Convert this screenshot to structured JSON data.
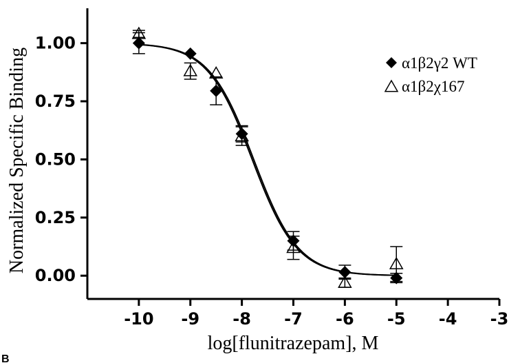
{
  "chart_data": {
    "type": "scatter",
    "xlabel": "log[flunitrazepam], M",
    "ylabel": "Normalized Specific Binding",
    "xlim": [
      -11,
      -3
    ],
    "ylim": [
      -0.1,
      1.15
    ],
    "x_ticks": [
      -10,
      -9,
      -8,
      -7,
      -6,
      -5,
      -4,
      -3
    ],
    "x_tick_labels": [
      "-10",
      "-9",
      "-8",
      "-7",
      "-6",
      "-5",
      "-4",
      "-3"
    ],
    "y_ticks": [
      0.0,
      0.25,
      0.5,
      0.75,
      1.0
    ],
    "y_tick_labels": [
      "0.00",
      "0.25",
      "0.50",
      "0.75",
      "1.00"
    ],
    "grid": false,
    "legend_position": "top-right",
    "series": [
      {
        "name": "α1β2γ2 WT",
        "marker": "filled-diamond",
        "color": "#000000",
        "x": [
          -10,
          -9,
          -8.5,
          -8,
          -7,
          -6,
          -5
        ],
        "y": [
          1.0,
          0.955,
          0.795,
          0.61,
          0.15,
          0.015,
          -0.01
        ],
        "yerr": [
          0.045,
          0.0,
          0.06,
          0.035,
          0.04,
          0.03,
          0.02
        ]
      },
      {
        "name": "α1β2χ167",
        "marker": "open-triangle",
        "color": "#000000",
        "x": [
          -10,
          -9,
          -8.5,
          -8,
          -7,
          -6,
          -5
        ],
        "y": [
          1.04,
          0.88,
          0.87,
          0.6,
          0.12,
          -0.03,
          0.05
        ],
        "yerr": [
          0.015,
          0.035,
          0.0,
          0.04,
          0.05,
          0.02,
          0.075
        ]
      }
    ],
    "fit_curves": [
      {
        "top": 1.0,
        "bottom": 0.0,
        "log_ic50": -7.8,
        "hill": -1.0
      },
      {
        "top": 1.0,
        "bottom": 0.0,
        "log_ic50": -7.77,
        "hill": -1.0
      }
    ],
    "corner_label": "B"
  }
}
